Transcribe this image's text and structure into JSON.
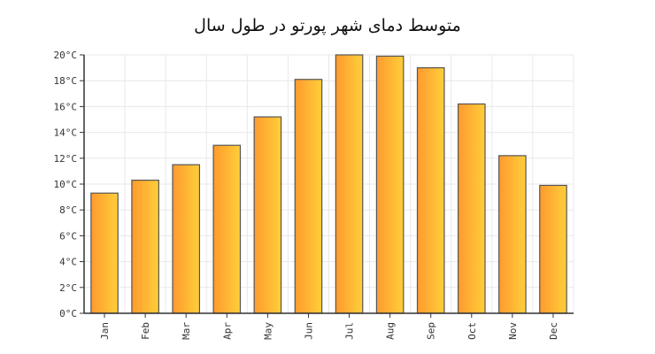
{
  "chart_data": {
    "type": "bar",
    "title": "متوسط دمای شهر پورتو در طول سال",
    "xlabel": "",
    "ylabel": "",
    "categories": [
      "Jan",
      "Feb",
      "Mar",
      "Apr",
      "May",
      "Jun",
      "Jul",
      "Aug",
      "Sep",
      "Oct",
      "Nov",
      "Dec"
    ],
    "values": [
      9.3,
      10.3,
      11.5,
      13.0,
      15.2,
      18.1,
      20.0,
      19.9,
      19.0,
      16.2,
      12.2,
      9.9
    ],
    "unit": "°C",
    "ylim": [
      0,
      20
    ],
    "yticks": [
      "0°C",
      "2°C",
      "4°C",
      "6°C",
      "8°C",
      "10°C",
      "12°C",
      "14°C",
      "16°C",
      "18°C",
      "20°C"
    ],
    "grid": true,
    "legend": "none",
    "colors": {
      "bar_left": "#ff9a2e",
      "bar_right": "#ffcf3a",
      "bar_stroke": "#555555",
      "grid": "#e8e8e8",
      "axis": "#333333"
    }
  }
}
